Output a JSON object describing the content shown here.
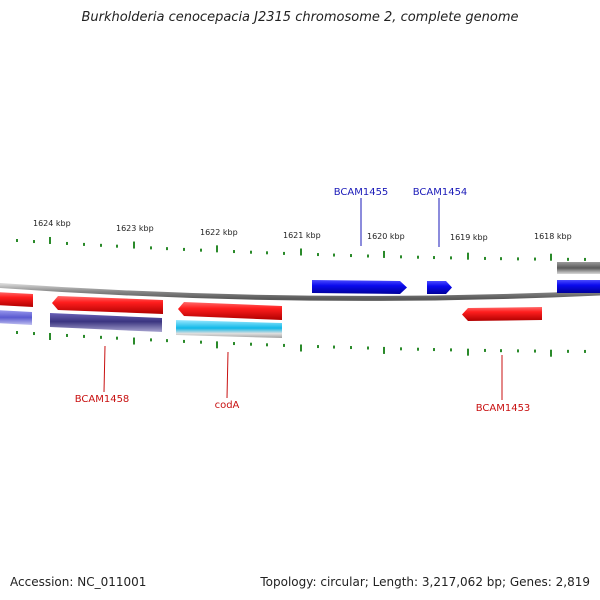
{
  "title": "Burkholderia cenocepacia J2315 chromosome 2, complete genome",
  "footer": {
    "accession": "Accession: NC_011001",
    "summary": "Topology: circular; Length: 3,217,062 bp; Genes: 2,819"
  },
  "colors": {
    "forward_gene": "#1010e6",
    "reverse_gene": "#e61010",
    "label_forward": "#1a1ab8",
    "label_reverse": "#c81010",
    "tick": "#2a8a2a",
    "backbone": "#8c8c8c"
  },
  "kbp_labels": [
    "1624 kbp",
    "1623 kbp",
    "1622 kbp",
    "1621 kbp",
    "1620 kbp",
    "1619 kbp",
    "1618 kbp"
  ],
  "genes": {
    "forward": [
      {
        "name": "BCAM1455"
      },
      {
        "name": "BCAM1454"
      }
    ],
    "reverse": [
      {
        "name": "BCAM1458"
      },
      {
        "name": "codA"
      },
      {
        "name": "BCAM1453"
      }
    ]
  }
}
